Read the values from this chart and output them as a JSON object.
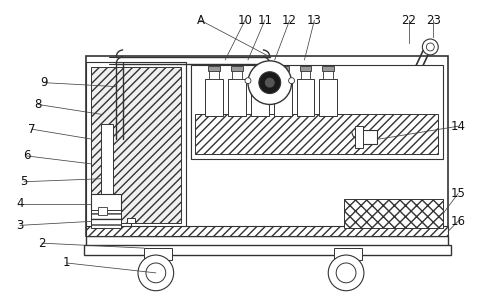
{
  "bg_color": "#ffffff",
  "lc": "#333333",
  "fig_width": 4.93,
  "fig_height": 3.04,
  "dpi": 100
}
